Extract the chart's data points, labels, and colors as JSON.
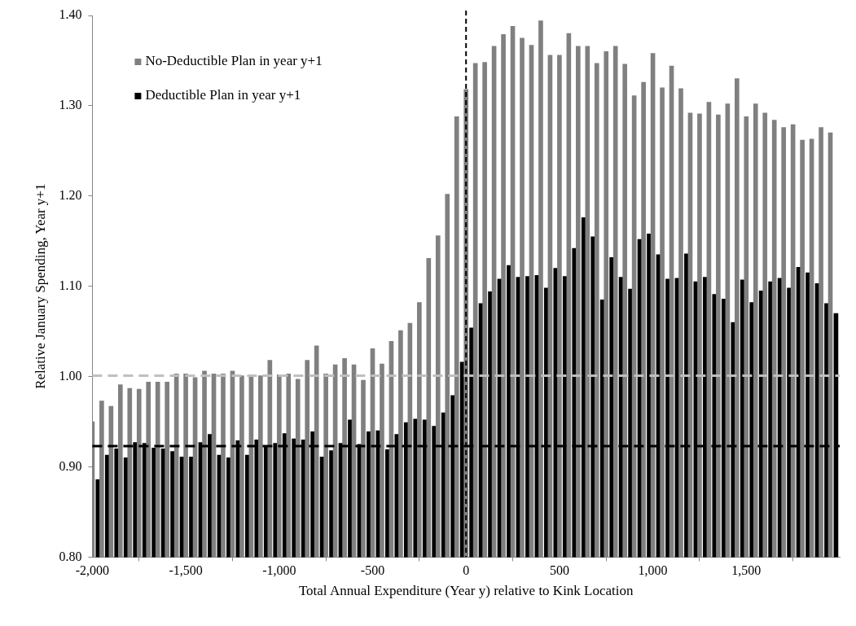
{
  "chart_data": {
    "type": "bar",
    "xlabel": "Total Annual Expenditure (Year y) relative to Kink Location",
    "ylabel": "Relative January Spending, Year y+1",
    "xlim": [
      -2000,
      2000
    ],
    "xticks": [
      {
        "value": -2000,
        "label": "-2,000"
      },
      {
        "value": -1500,
        "label": "-1,500"
      },
      {
        "value": -1000,
        "label": "-1,000"
      },
      {
        "value": -500,
        "label": "-500"
      },
      0,
      500,
      {
        "value": 1000,
        "label": "1,000"
      },
      {
        "value": 1500,
        "label": "1,500"
      }
    ],
    "ylim": [
      0.8,
      1.4
    ],
    "yticks": [
      {
        "value": 0.8,
        "label": "0.80"
      },
      {
        "value": 0.9,
        "label": "0.90"
      },
      {
        "value": 1.0,
        "label": "1.00"
      },
      {
        "value": 1.1,
        "label": "1.10"
      },
      {
        "value": 1.2,
        "label": "1.20"
      },
      {
        "value": 1.3,
        "label": "1.30"
      },
      {
        "value": 1.4,
        "label": "1.40"
      }
    ],
    "legend": "top left",
    "ref_lines": [
      {
        "axis": "x",
        "value": 0,
        "color": "#000000",
        "line_style": "dashed"
      },
      {
        "axis": "y",
        "value": 1.001,
        "color": "#bfbfbf",
        "line_style": "dashed"
      },
      {
        "axis": "y",
        "value": 0.923,
        "color": "#000000",
        "line_style": "dashed"
      }
    ],
    "series": [
      {
        "name": "No-Deductible Plan in year y+1",
        "color": "#808080",
        "x": [
          -2000,
          -1950,
          -1900,
          -1850,
          -1800,
          -1750,
          -1700,
          -1650,
          -1600,
          -1550,
          -1500,
          -1450,
          -1400,
          -1350,
          -1300,
          -1250,
          -1200,
          -1150,
          -1100,
          -1050,
          -1000,
          -950,
          -900,
          -850,
          -800,
          -750,
          -700,
          -650,
          -600,
          -550,
          -500,
          -450,
          -400,
          -350,
          -300,
          -250,
          -200,
          -150,
          -100,
          -50,
          0,
          50,
          100,
          150,
          200,
          250,
          300,
          350,
          400,
          450,
          500,
          550,
          600,
          650,
          700,
          750,
          800,
          850,
          900,
          950,
          1000,
          1050,
          1100,
          1150,
          1200,
          1250,
          1300,
          1350,
          1400,
          1450,
          1500,
          1550,
          1600,
          1650,
          1700,
          1750,
          1800,
          1850,
          1900,
          1950
        ],
        "values": [
          0.95,
          0.973,
          0.967,
          0.991,
          0.987,
          0.986,
          0.994,
          0.994,
          0.994,
          1.003,
          1.003,
          0.999,
          1.006,
          1.003,
          1.003,
          1.006,
          1.001,
          1.001,
          1.001,
          1.018,
          1.002,
          1.003,
          0.997,
          1.018,
          1.034,
          1.003,
          1.013,
          1.02,
          1.013,
          0.996,
          1.031,
          1.014,
          1.039,
          1.051,
          1.059,
          1.082,
          1.131,
          1.156,
          1.202,
          1.288,
          1.318,
          1.347,
          1.348,
          1.366,
          1.379,
          1.388,
          1.375,
          1.367,
          1.394,
          1.356,
          1.356,
          1.38,
          1.366,
          1.366,
          1.347,
          1.36,
          1.366,
          1.346,
          1.311,
          1.326,
          1.358,
          1.32,
          1.344,
          1.319,
          1.292,
          1.291,
          1.304,
          1.29,
          1.302,
          1.33,
          1.288,
          1.302,
          1.292,
          1.284,
          1.276,
          1.279,
          1.262,
          1.263,
          1.276,
          1.27
        ]
      },
      {
        "name": "Deductible Plan in year y+1",
        "color": "#000000",
        "x": [
          -1970,
          -1920,
          -1870,
          -1820,
          -1770,
          -1720,
          -1670,
          -1620,
          -1570,
          -1520,
          -1470,
          -1420,
          -1370,
          -1320,
          -1270,
          -1220,
          -1170,
          -1120,
          -1070,
          -1020,
          -970,
          -920,
          -870,
          -820,
          -770,
          -720,
          -670,
          -620,
          -570,
          -520,
          -470,
          -420,
          -370,
          -320,
          -270,
          -220,
          -170,
          -120,
          -70,
          -20,
          30,
          80,
          130,
          180,
          230,
          280,
          330,
          380,
          430,
          480,
          530,
          580,
          630,
          680,
          730,
          780,
          830,
          880,
          930,
          980,
          1030,
          1080,
          1130,
          1180,
          1230,
          1280,
          1330,
          1380,
          1430,
          1480,
          1530,
          1580,
          1630,
          1680,
          1730,
          1780,
          1830,
          1880,
          1930,
          1980
        ],
        "values": [
          0.886,
          0.913,
          0.92,
          0.91,
          0.927,
          0.926,
          0.921,
          0.92,
          0.917,
          0.911,
          0.911,
          0.927,
          0.936,
          0.913,
          0.91,
          0.929,
          0.913,
          0.93,
          0.923,
          0.926,
          0.937,
          0.931,
          0.93,
          0.939,
          0.911,
          0.918,
          0.926,
          0.952,
          0.925,
          0.939,
          0.94,
          0.919,
          0.936,
          0.949,
          0.953,
          0.952,
          0.945,
          0.96,
          0.979,
          1.016,
          1.054,
          1.081,
          1.094,
          1.108,
          1.123,
          1.11,
          1.111,
          1.112,
          1.098,
          1.12,
          1.111,
          1.142,
          1.176,
          1.155,
          1.085,
          1.132,
          1.11,
          1.097,
          1.152,
          1.158,
          1.135,
          1.108,
          1.109,
          1.136,
          1.105,
          1.11,
          1.091,
          1.086,
          1.06,
          1.107,
          1.082,
          1.095,
          1.105,
          1.109,
          1.098,
          1.121,
          1.115,
          1.103,
          1.081,
          1.07
        ]
      }
    ]
  }
}
